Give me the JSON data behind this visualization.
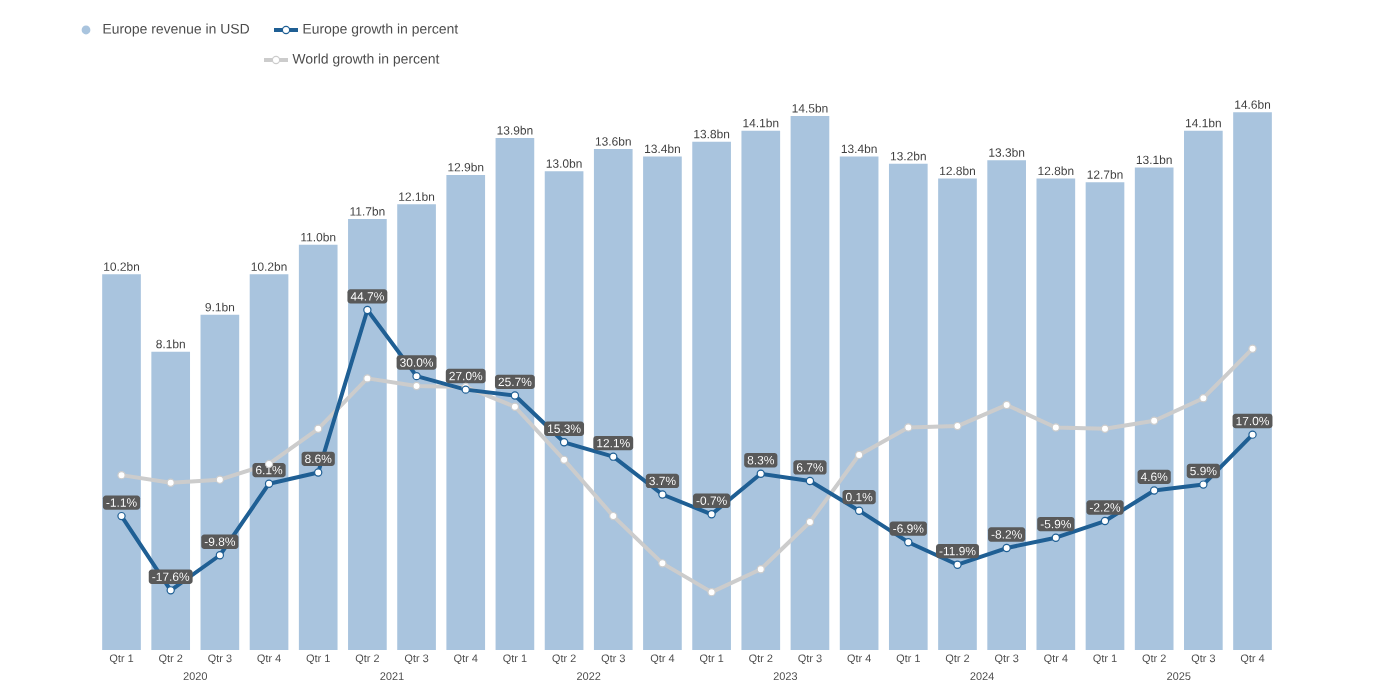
{
  "chart_data": {
    "type": "bar",
    "categories": [
      "Qtr 1",
      "Qtr 2",
      "Qtr 3",
      "Qtr 4",
      "Qtr 1",
      "Qtr 2",
      "Qtr 3",
      "Qtr 4",
      "Qtr 1",
      "Qtr 2",
      "Qtr 3",
      "Qtr 4",
      "Qtr 1",
      "Qtr 2",
      "Qtr 3",
      "Qtr 4",
      "Qtr 1",
      "Qtr 2",
      "Qtr 3",
      "Qtr 4",
      "Qtr 1",
      "Qtr 2",
      "Qtr 3",
      "Qtr 4"
    ],
    "annotations": [
      "2020",
      "2021",
      "2022",
      "2023",
      "2024",
      "2025"
    ],
    "series": [
      {
        "name": "Europe revenue in USD",
        "color": "#a9c4de",
        "values": [
          10.2,
          8.1,
          9.1,
          10.2,
          11.0,
          11.7,
          12.1,
          12.9,
          13.9,
          13.0,
          13.6,
          13.4,
          13.8,
          14.1,
          14.5,
          13.4,
          13.2,
          12.8,
          13.3,
          12.8,
          12.7,
          13.1,
          14.1,
          14.6
        ],
        "value_labels": [
          "10.2bn",
          "8.1bn",
          "9.1bn",
          "10.2bn",
          "11.0bn",
          "11.7bn",
          "12.1bn",
          "12.9bn",
          "13.9bn",
          "13.0bn",
          "13.6bn",
          "13.4bn",
          "13.8bn",
          "14.1bn",
          "14.5bn",
          "13.4bn",
          "13.2bn",
          "12.8bn",
          "13.3bn",
          "12.8bn",
          "12.7bn",
          "13.1bn",
          "14.1bn",
          "14.6bn"
        ]
      },
      {
        "name": "Europe growth in percent",
        "type": "line",
        "axis": "y2",
        "color": "#1f5f94",
        "values": [
          -1.1,
          -17.6,
          -9.8,
          6.1,
          8.6,
          44.7,
          30.0,
          27.0,
          25.7,
          15.3,
          12.1,
          3.7,
          -0.7,
          8.3,
          6.7,
          0.1,
          -6.9,
          -11.9,
          -8.2,
          -5.9,
          -2.2,
          4.6,
          5.9,
          17.0
        ],
        "value_labels": [
          "-1.1%",
          "-17.6%",
          "-9.8%",
          "6.1%",
          "8.6%",
          "44.7%",
          "30.0%",
          "27.0%",
          "25.7%",
          "15.3%",
          "12.1%",
          "3.7%",
          "-0.7%",
          "8.3%",
          "6.7%",
          "0.1%",
          "-6.9%",
          "-11.9%",
          "-8.2%",
          "-5.9%",
          "-2.2%",
          "4.6%",
          "5.9%",
          "17.0%"
        ]
      },
      {
        "name": "World growth in percent",
        "type": "line",
        "axis": "y2",
        "color": "#cccccc",
        "values": [
          8.0,
          6.3,
          7.0,
          10.5,
          18.3,
          29.5,
          27.8,
          27.6,
          23.2,
          11.4,
          -1.1,
          -11.6,
          -18.0,
          -12.9,
          -2.4,
          12.5,
          18.6,
          18.9,
          23.6,
          18.6,
          18.3,
          20.1,
          25.1,
          36.1
        ]
      }
    ],
    "tick_labels": "x",
    "marker": "circle",
    "legend": "top"
  }
}
